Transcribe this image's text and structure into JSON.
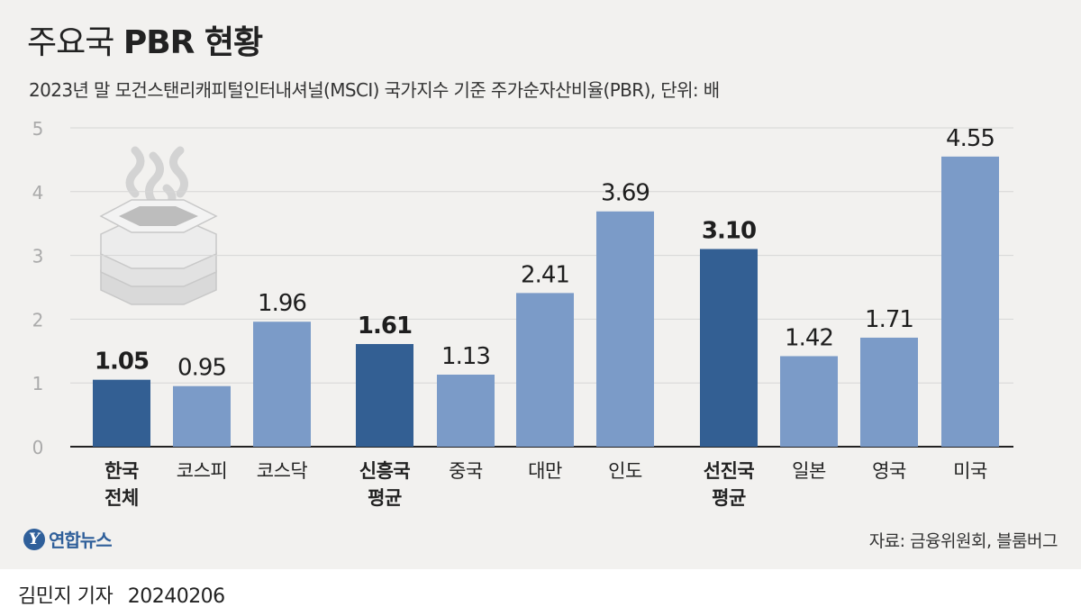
{
  "header": {
    "title_light": "주요국",
    "title_bold": "PBR 현황",
    "subtitle": "2023년 말 모건스탠리캐피털인터내셔널(MSCI) 국가지수 기준 주가순자산비율(PBR), 단위: 배"
  },
  "chart_data": {
    "type": "bar",
    "title": "주요국 PBR 현황",
    "ylabel": "배",
    "ylim": [
      0,
      5
    ],
    "yticks": [
      "0",
      "1",
      "2",
      "3",
      "4",
      "5"
    ],
    "grid": true,
    "categories": [
      [
        "한국",
        "전체"
      ],
      [
        "코스피"
      ],
      [
        "코스닥"
      ],
      [
        "신흥국",
        "평균"
      ],
      [
        "중국"
      ],
      [
        "대만"
      ],
      [
        "인도"
      ],
      [
        "선진국",
        "평균"
      ],
      [
        "일본"
      ],
      [
        "영국"
      ],
      [
        "미국"
      ]
    ],
    "values": [
      1.05,
      0.95,
      1.96,
      1.61,
      1.13,
      2.41,
      3.69,
      3.1,
      1.42,
      1.71,
      4.55
    ],
    "value_labels": [
      "1.05",
      "0.95",
      "1.96",
      "1.61",
      "1.13",
      "2.41",
      "3.69",
      "3.10",
      "1.42",
      "1.71",
      "4.55"
    ],
    "highlighted": [
      true,
      false,
      false,
      true,
      false,
      false,
      false,
      true,
      false,
      false,
      false
    ],
    "colors": {
      "highlight": "#335f93",
      "normal": "#7b9bc8",
      "grid": "#d6d6d6",
      "axis": "#222222",
      "tick": "#aaaaaa"
    }
  },
  "logo": {
    "symbol": "Y",
    "text": "연합뉴스"
  },
  "source": "자료: 금융위원회, 블룸버그",
  "footer": {
    "reporter": "김민지 기자",
    "date": "20240206"
  }
}
